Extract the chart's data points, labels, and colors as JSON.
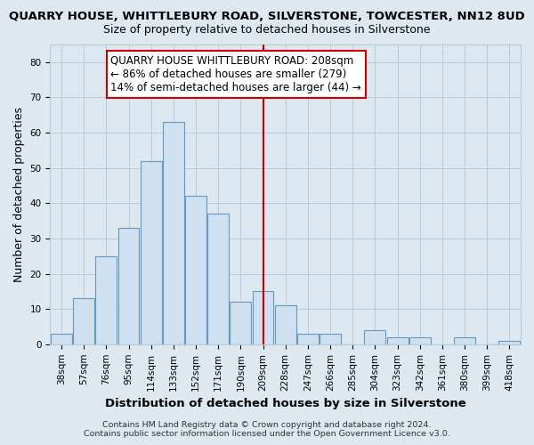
{
  "title": "QUARRY HOUSE, WHITTLEBURY ROAD, SILVERSTONE, TOWCESTER, NN12 8UD",
  "subtitle": "Size of property relative to detached houses in Silverstone",
  "xlabel": "Distribution of detached houses by size in Silverstone",
  "ylabel": "Number of detached properties",
  "bin_labels": [
    "38sqm",
    "57sqm",
    "76sqm",
    "95sqm",
    "114sqm",
    "133sqm",
    "152sqm",
    "171sqm",
    "190sqm",
    "209sqm",
    "228sqm",
    "247sqm",
    "266sqm",
    "285sqm",
    "304sqm",
    "323sqm",
    "342sqm",
    "361sqm",
    "380sqm",
    "399sqm",
    "418sqm"
  ],
  "bar_heights": [
    3,
    13,
    25,
    33,
    52,
    63,
    42,
    37,
    12,
    15,
    11,
    3,
    3,
    0,
    4,
    2,
    2,
    0,
    2,
    0,
    1
  ],
  "bar_color": "#cfe0f0",
  "bar_edge_color": "#6699bb",
  "vline_x_index": 9,
  "vline_color": "#cc0000",
  "annotation_title": "QUARRY HOUSE WHITTLEBURY ROAD: 208sqm",
  "annotation_line1": "← 86% of detached houses are smaller (279)",
  "annotation_line2": "14% of semi-detached houses are larger (44) →",
  "annotation_box_facecolor": "#ffffff",
  "annotation_box_edgecolor": "#cc0000",
  "ylim": [
    0,
    85
  ],
  "yticks": [
    0,
    10,
    20,
    30,
    40,
    50,
    60,
    70,
    80
  ],
  "footer_line1": "Contains HM Land Registry data © Crown copyright and database right 2024.",
  "footer_line2": "Contains public sector information licensed under the Open Government Licence v3.0.",
  "background_color": "#dde8f0",
  "plot_background_color": "#dde8f0",
  "grid_color": "#b8ccd8",
  "title_fontsize": 9.5,
  "subtitle_fontsize": 9,
  "xlabel_fontsize": 9.5,
  "ylabel_fontsize": 9,
  "tick_fontsize": 7.5,
  "footer_fontsize": 6.8,
  "annotation_fontsize": 8.5
}
